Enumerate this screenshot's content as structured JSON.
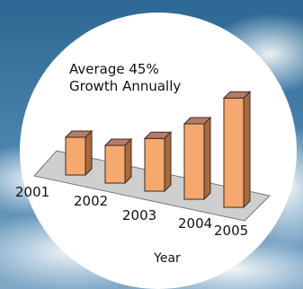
{
  "chart_data": {
    "type": "bar",
    "title": "Average 45% Growth Annually",
    "title_lines": [
      "Average 45%",
      "Growth Annually"
    ],
    "categories": [
      "2001",
      "2002",
      "2003",
      "2004",
      "2005"
    ],
    "values": [
      1.0,
      1.0,
      1.4,
      2.0,
      2.9
    ],
    "xlabel": "Year",
    "ylabel": "",
    "ylim": [
      0,
      3.2
    ],
    "grid": false,
    "legend": "none",
    "bar_style": "3d"
  },
  "colors": {
    "bar_front": "#f5a96e",
    "bar_side": "#a9693f",
    "bar_top": "#b77a6a",
    "floor": "#cfcfcf",
    "circle": "#ffffff",
    "sky_top": "#2e6f9a",
    "sky_bottom": "#5f92b8",
    "text": "#111111"
  }
}
